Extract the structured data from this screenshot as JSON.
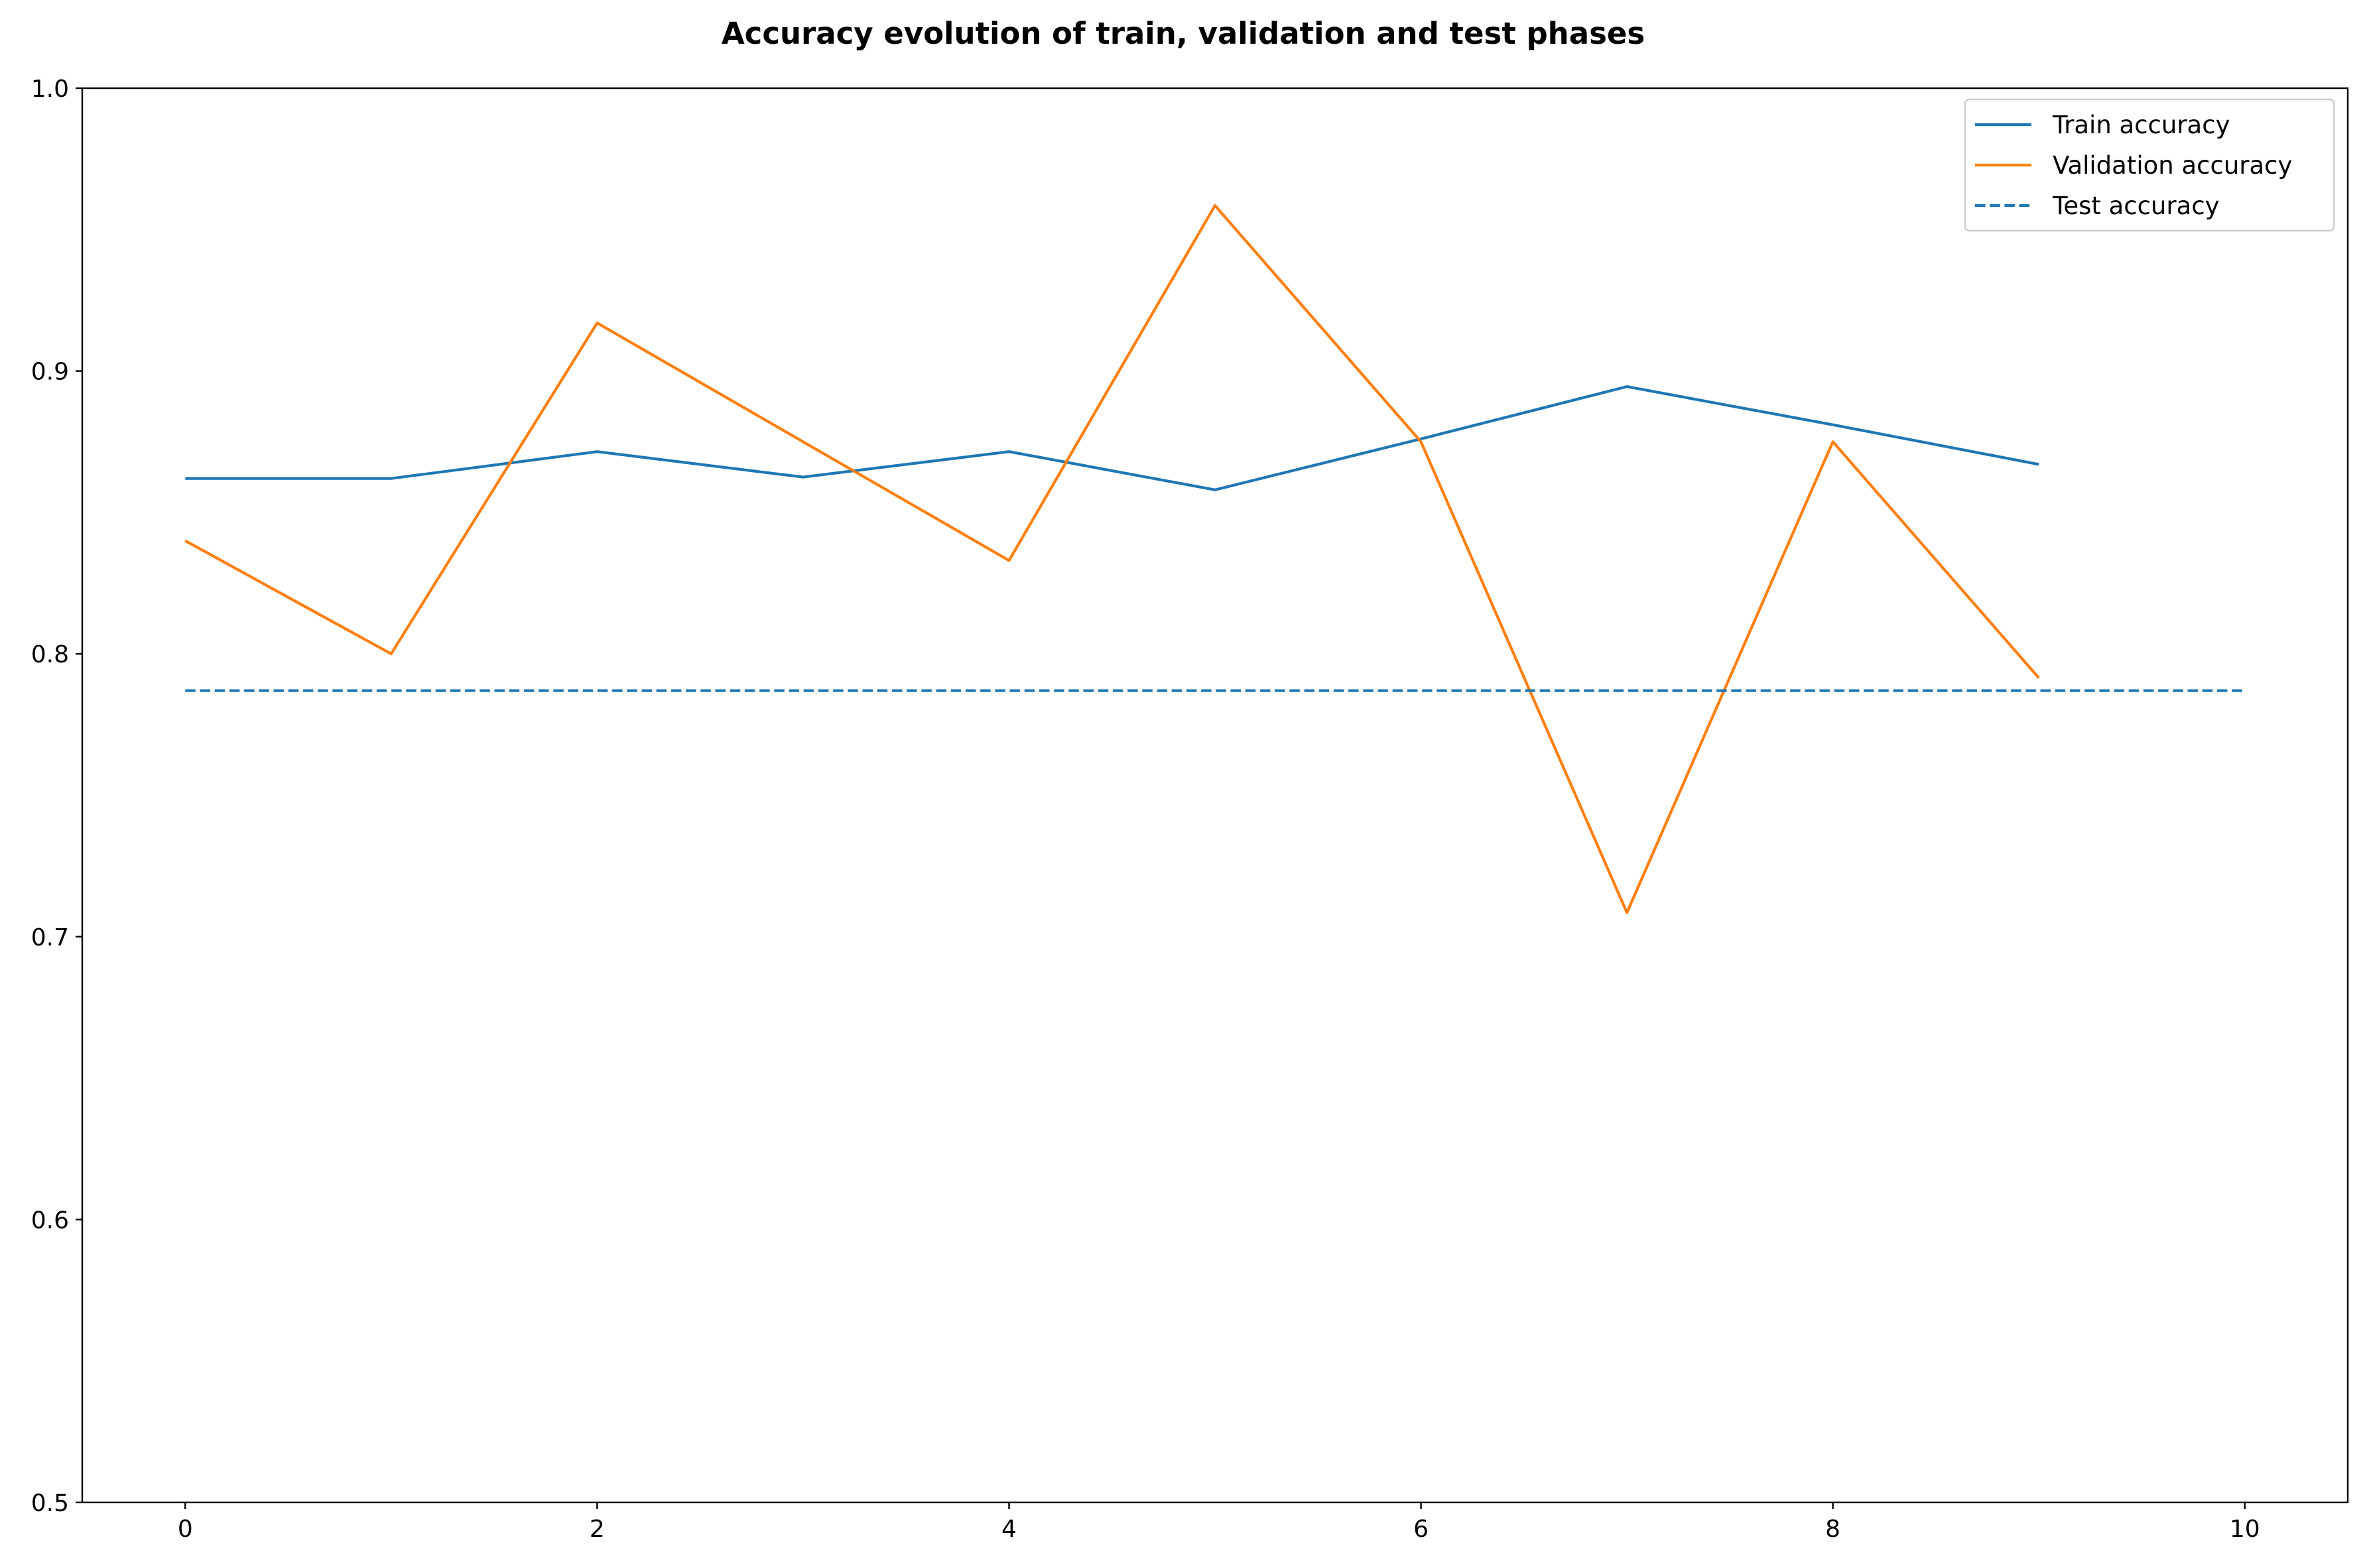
{
  "chart_data": {
    "type": "line",
    "title": "Accuracy evolution of train, validation and test phases",
    "xlabel": "",
    "ylabel": "",
    "xlim": [
      -0.5,
      10.5
    ],
    "ylim": [
      0.5,
      1.0
    ],
    "xticks": [
      0,
      2,
      4,
      6,
      8,
      10
    ],
    "yticks": [
      0.5,
      0.6,
      0.7,
      0.8,
      0.9,
      1.0
    ],
    "xtick_labels": [
      "0",
      "2",
      "4",
      "6",
      "8",
      "10"
    ],
    "ytick_labels": [
      "0.5",
      "0.6",
      "0.7",
      "0.8",
      "0.9",
      "1.0"
    ],
    "grid": false,
    "legend_position": "top-right",
    "series": [
      {
        "name": "Train accuracy",
        "color": "#1f77b4",
        "style": "solid",
        "x": [
          0,
          1,
          2,
          3,
          4,
          5,
          6,
          7,
          8,
          9
        ],
        "y": [
          0.862,
          0.862,
          0.8715,
          0.8625,
          0.8715,
          0.858,
          0.876,
          0.8945,
          0.881,
          0.867
        ]
      },
      {
        "name": "Validation accuracy",
        "color": "#ff7f0e",
        "style": "solid",
        "x": [
          0,
          1,
          2,
          3,
          4,
          5,
          6,
          7,
          8,
          9
        ],
        "y": [
          0.84,
          0.8,
          0.917,
          0.875,
          0.833,
          0.9585,
          0.875,
          0.7085,
          0.875,
          0.7915
        ]
      },
      {
        "name": "Test accuracy",
        "color": "#1f77b4",
        "style": "dashed",
        "x": [
          0,
          10
        ],
        "y": [
          0.787,
          0.787
        ]
      }
    ]
  }
}
